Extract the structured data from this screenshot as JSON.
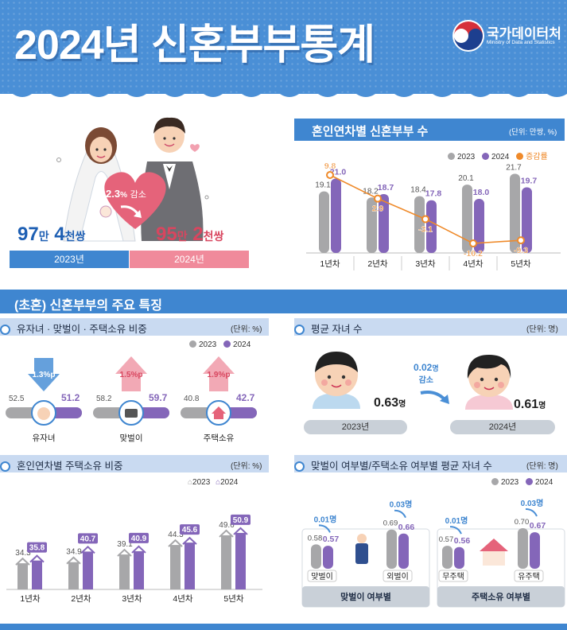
{
  "header": {
    "title": "2024년 신혼부부통계",
    "logo_name": "국가데이터처",
    "logo_sub": "Ministry of Data and Statistics"
  },
  "couples": {
    "y2023_num1": "97",
    "y2023_unit1": "만",
    "y2023_num2": "4",
    "y2023_unit2": "천쌍",
    "y2024_num1": "95",
    "y2024_unit1": "만",
    "y2024_num2": "2",
    "y2024_unit2": "천쌍",
    "label_2023": "2023년",
    "label_2024": "2024년",
    "change_value": "2.3",
    "change_pct": "%",
    "change_word": "감소"
  },
  "section_title": "(초혼) 신혼부부의 주요 특징",
  "colors": {
    "gray": "#a7a7a9",
    "purple": "#8466b9",
    "orange": "#ef8a2a",
    "blue": "#3f86d0",
    "pink": "#e4677d"
  },
  "chart_years": {
    "title": "혼인연차별 신혼부부 수",
    "unit": "(단위: 만쌍, %)",
    "legend": [
      "2023",
      "2024",
      "증감률"
    ],
    "chart_data": {
      "type": "bar",
      "categories": [
        "1년차",
        "2년차",
        "3년차",
        "4년차",
        "5년차"
      ],
      "series": [
        {
          "name": "2023",
          "values": [
            19.1,
            18.2,
            18.4,
            20.1,
            21.7
          ]
        },
        {
          "name": "2024",
          "values": [
            21.0,
            18.7,
            17.8,
            18.0,
            19.7
          ]
        },
        {
          "name": "증감률",
          "values": [
            9.8,
            2.9,
            -3.1,
            -10.2,
            -9.3
          ]
        }
      ]
    }
  },
  "features": {
    "title": "유자녀 · 맞벌이 · 주택소유 비중",
    "unit": "(단위: %)",
    "legend": [
      "2023",
      "2024"
    ],
    "items": [
      {
        "label": "유자녀",
        "v2023": "52.5",
        "v2024": "51.2",
        "change": "1.3",
        "change_unit": "%p",
        "v2023_num": 52.5,
        "v2024_num": 51.2
      },
      {
        "label": "맞벌이",
        "v2023": "58.2",
        "v2024": "59.7",
        "change": "1.5",
        "change_unit": "%p",
        "v2023_num": 58.2,
        "v2024_num": 59.7
      },
      {
        "label": "주택소유",
        "v2023": "40.8",
        "v2024": "42.7",
        "change": "1.9",
        "change_unit": "%p",
        "v2023_num": 40.8,
        "v2024_num": 42.7
      }
    ]
  },
  "children": {
    "title": "평균 자녀 수",
    "unit": "(단위: 명)",
    "v2023": "0.63",
    "v2024": "0.61",
    "person_unit": "명",
    "label_2023": "2023년",
    "label_2024": "2024년",
    "change": "0.02",
    "change_unit": "명",
    "change_word": "감소"
  },
  "chart_house": {
    "title": "혼인연차별 주택소유 비중",
    "unit": "(단위: %)",
    "legend": [
      "2023",
      "2024"
    ],
    "chart_data": {
      "type": "bar",
      "categories": [
        "1년차",
        "2년차",
        "3년차",
        "4년차",
        "5년차"
      ],
      "series": [
        {
          "name": "2023",
          "values": [
            34.3,
            34.9,
            39.1,
            44.3,
            49.6
          ]
        },
        {
          "name": "2024",
          "values": [
            35.8,
            40.7,
            40.9,
            45.6,
            50.9
          ]
        }
      ]
    }
  },
  "chart_kids": {
    "title": "맞벌이 여부별/주택소유 여부별 평균 자녀 수",
    "unit": "(단위: 명)",
    "legend": [
      "2023",
      "2024"
    ],
    "groups": [
      {
        "name": "맞벌이 여부별",
        "items": [
          {
            "label": "맞벌이",
            "change": "0.01",
            "change_unit": "명"
          },
          {
            "label": "외벌이",
            "change": "0.03",
            "change_unit": "명"
          }
        ]
      },
      {
        "name": "주택소유 여부별",
        "items": [
          {
            "label": "무주택",
            "change": "0.01",
            "change_unit": "명"
          },
          {
            "label": "유주택",
            "change": "0.03",
            "change_unit": "명"
          }
        ]
      }
    ],
    "chart_data": {
      "type": "bar",
      "categories": [
        "맞벌이",
        "외벌이",
        "무주택",
        "유주택"
      ],
      "series": [
        {
          "name": "2023",
          "values": [
            0.58,
            0.69,
            0.57,
            0.7
          ]
        },
        {
          "name": "2024",
          "values": [
            0.57,
            0.66,
            0.56,
            0.67
          ]
        }
      ]
    }
  }
}
